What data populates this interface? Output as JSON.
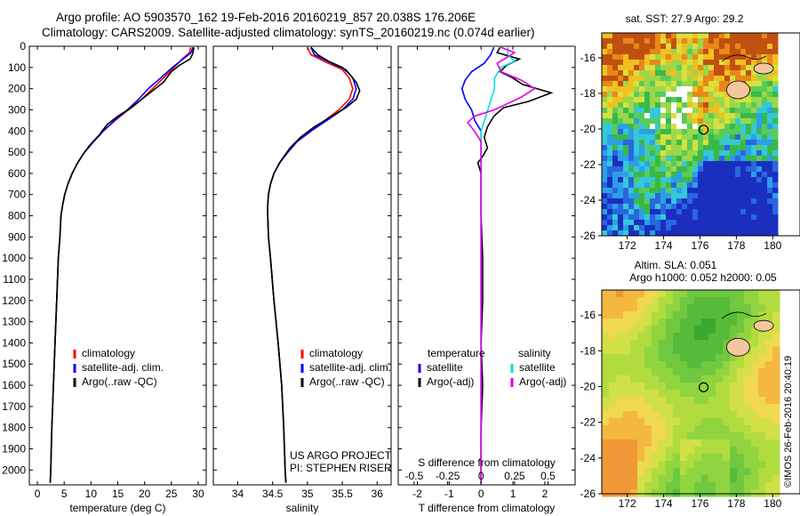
{
  "header": {
    "line1": "Argo profile: AO 5903570_162 19-Feb-2016 20160219_857 20.038S 176.206E",
    "line2": "Climatology: CARS2009. Satellite-adjusted climatology: synTS_20160219.nc (0.074d earlier)"
  },
  "colors": {
    "clim": "#ff0000",
    "sat": "#0000ff",
    "argo": "#000000",
    "sat_s": "#00e0e0",
    "argo_s": "#e000e0"
  },
  "chart_data": [
    {
      "type": "line",
      "panel": "temperature",
      "xlabel": "temperature (deg C)",
      "xlim": [
        -1.5,
        31.5
      ],
      "xticks": [
        0,
        5,
        10,
        15,
        20,
        25,
        30
      ],
      "ylim": [
        2070,
        0
      ],
      "yticks": [
        0,
        100,
        200,
        300,
        400,
        500,
        600,
        700,
        800,
        900,
        1000,
        1100,
        1200,
        1300,
        1400,
        1500,
        1600,
        1700,
        1800,
        1900,
        2000
      ],
      "legend": [
        "climatology",
        "satellite-adj. clim.",
        "Argo(..raw -QC)"
      ],
      "series": [
        {
          "name": "climatology",
          "color_key": "clim",
          "points": [
            [
              28.6,
              5
            ],
            [
              28.4,
              30
            ],
            [
              27,
              60
            ],
            [
              25.5,
              100
            ],
            [
              23.5,
              150
            ],
            [
              21.5,
              200
            ],
            [
              19.5,
              250
            ],
            [
              17,
              300
            ],
            [
              14.5,
              350
            ],
            [
              12.3,
              400
            ],
            [
              10.5,
              450
            ],
            [
              8.8,
              500
            ],
            [
              7.5,
              550
            ],
            [
              6.5,
              600
            ],
            [
              5.7,
              650
            ],
            [
              5.1,
              700
            ],
            [
              4.7,
              750
            ],
            [
              4.4,
              800
            ],
            [
              4.2,
              900
            ],
            [
              3.9,
              1000
            ],
            [
              3.6,
              1200
            ],
            [
              3.3,
              1400
            ],
            [
              3,
              1600
            ],
            [
              2.7,
              1800
            ],
            [
              2.5,
              2000
            ],
            [
              2.4,
              2060
            ]
          ]
        },
        {
          "name": "satellite-adj. clim.",
          "color_key": "sat",
          "points": [
            [
              29,
              5
            ],
            [
              28.7,
              30
            ],
            [
              27.2,
              60
            ],
            [
              25.2,
              100
            ],
            [
              23,
              150
            ],
            [
              20.7,
              200
            ],
            [
              18.9,
              250
            ],
            [
              16.8,
              300
            ],
            [
              14.4,
              350
            ],
            [
              12.3,
              400
            ],
            [
              10.5,
              450
            ],
            [
              8.8,
              500
            ],
            [
              7.5,
              550
            ],
            [
              6.5,
              600
            ],
            [
              5.7,
              650
            ],
            [
              5.1,
              700
            ],
            [
              4.7,
              750
            ],
            [
              4.4,
              800
            ],
            [
              4.2,
              900
            ],
            [
              3.9,
              1000
            ],
            [
              3.6,
              1200
            ],
            [
              3.3,
              1400
            ],
            [
              3,
              1600
            ],
            [
              2.7,
              1800
            ],
            [
              2.5,
              2000
            ],
            [
              2.4,
              2060
            ]
          ]
        },
        {
          "name": "Argo(..raw -QC)",
          "color_key": "argo",
          "points": [
            [
              29.2,
              5
            ],
            [
              29,
              35
            ],
            [
              28.5,
              60
            ],
            [
              26.5,
              90
            ],
            [
              25,
              120
            ],
            [
              23.5,
              170
            ],
            [
              21.5,
              210
            ],
            [
              19.5,
              250
            ],
            [
              17.5,
              290
            ],
            [
              15,
              330
            ],
            [
              13,
              370
            ],
            [
              11.5,
              420
            ],
            [
              10,
              460
            ],
            [
              8.8,
              500
            ],
            [
              7.5,
              550
            ],
            [
              6.5,
              600
            ],
            [
              5.7,
              650
            ],
            [
              5.1,
              700
            ],
            [
              4.7,
              750
            ],
            [
              4.4,
              800
            ],
            [
              4.2,
              900
            ],
            [
              3.9,
              1000
            ],
            [
              3.6,
              1200
            ],
            [
              3.3,
              1400
            ],
            [
              3,
              1600
            ],
            [
              2.7,
              1800
            ],
            [
              2.5,
              2000
            ],
            [
              2.4,
              2060
            ]
          ]
        }
      ]
    },
    {
      "type": "line",
      "panel": "salinity",
      "xlabel": "salinity",
      "xlim": [
        33.65,
        36.2
      ],
      "xticks": [
        34,
        34.5,
        35,
        35.5,
        36
      ],
      "ylim": [
        2070,
        0
      ],
      "legend": [
        "climatology",
        "satellite-adj. clim.",
        "Argo(..raw -QC)"
      ],
      "annotations": [
        "US ARGO PROJECT",
        "PI: STEPHEN RISER"
      ],
      "series": [
        {
          "name": "climatology",
          "color_key": "clim",
          "points": [
            [
              35,
              5
            ],
            [
              35.05,
              40
            ],
            [
              35.3,
              80
            ],
            [
              35.5,
              110
            ],
            [
              35.6,
              150
            ],
            [
              35.65,
              200
            ],
            [
              35.6,
              250
            ],
            [
              35.45,
              300
            ],
            [
              35.25,
              350
            ],
            [
              35.05,
              400
            ],
            [
              34.85,
              450
            ],
            [
              34.72,
              500
            ],
            [
              34.6,
              550
            ],
            [
              34.52,
              600
            ],
            [
              34.47,
              650
            ],
            [
              34.44,
              700
            ],
            [
              34.43,
              750
            ],
            [
              34.43,
              800
            ],
            [
              34.44,
              900
            ],
            [
              34.47,
              1000
            ],
            [
              34.52,
              1200
            ],
            [
              34.58,
              1400
            ],
            [
              34.63,
              1600
            ],
            [
              34.66,
              1800
            ],
            [
              34.68,
              2000
            ],
            [
              34.69,
              2060
            ]
          ]
        },
        {
          "name": "satellite-adj. clim.",
          "color_key": "sat",
          "points": [
            [
              35.05,
              5
            ],
            [
              35.1,
              40
            ],
            [
              35.35,
              80
            ],
            [
              35.55,
              110
            ],
            [
              35.65,
              150
            ],
            [
              35.7,
              200
            ],
            [
              35.65,
              250
            ],
            [
              35.5,
              300
            ],
            [
              35.28,
              350
            ],
            [
              35.05,
              400
            ],
            [
              34.85,
              450
            ],
            [
              34.72,
              500
            ],
            [
              34.6,
              550
            ],
            [
              34.52,
              600
            ],
            [
              34.47,
              650
            ],
            [
              34.44,
              700
            ],
            [
              34.43,
              750
            ],
            [
              34.43,
              800
            ],
            [
              34.44,
              900
            ],
            [
              34.47,
              1000
            ],
            [
              34.52,
              1200
            ],
            [
              34.58,
              1400
            ],
            [
              34.63,
              1600
            ],
            [
              34.66,
              1800
            ],
            [
              34.68,
              2000
            ],
            [
              34.69,
              2060
            ]
          ]
        },
        {
          "name": "Argo(..raw -QC)",
          "color_key": "argo",
          "points": [
            [
              35.05,
              5
            ],
            [
              35.15,
              40
            ],
            [
              35.3,
              70
            ],
            [
              35.5,
              100
            ],
            [
              35.6,
              130
            ],
            [
              35.7,
              170
            ],
            [
              35.75,
              210
            ],
            [
              35.7,
              250
            ],
            [
              35.55,
              290
            ],
            [
              35.3,
              340
            ],
            [
              35.1,
              380
            ],
            [
              34.9,
              430
            ],
            [
              34.75,
              480
            ],
            [
              34.62,
              540
            ],
            [
              34.52,
              600
            ],
            [
              34.47,
              650
            ],
            [
              34.44,
              700
            ],
            [
              34.43,
              750
            ],
            [
              34.43,
              800
            ],
            [
              34.44,
              900
            ],
            [
              34.47,
              1000
            ],
            [
              34.52,
              1200
            ],
            [
              34.58,
              1400
            ],
            [
              34.63,
              1600
            ],
            [
              34.66,
              1800
            ],
            [
              34.68,
              2000
            ],
            [
              34.69,
              2060
            ]
          ]
        }
      ]
    },
    {
      "type": "line",
      "panel": "difference",
      "xlabel": "T difference from climatology",
      "top_label": "S difference from climatology",
      "xlim": [
        -2.6,
        2.95
      ],
      "xticks": [
        -2,
        -1,
        0,
        1,
        2
      ],
      "s_xticks": [
        -0.5,
        -0.25,
        0,
        0.25,
        0.5
      ],
      "ylim": [
        2070,
        0
      ],
      "legend_temperature": [
        "temperature",
        "satellite",
        "Argo(-adj)"
      ],
      "legend_salinity": [
        "salinity",
        "satellite",
        "Argo(-adj)"
      ],
      "series": [
        {
          "name": "satellite",
          "quantity": "T",
          "color_key": "sat",
          "points": [
            [
              0.4,
              5
            ],
            [
              0.3,
              40
            ],
            [
              0.1,
              80
            ],
            [
              -0.3,
              120
            ],
            [
              -0.5,
              160
            ],
            [
              -0.6,
              200
            ],
            [
              -0.5,
              250
            ],
            [
              -0.3,
              300
            ],
            [
              -0.2,
              350
            ],
            [
              0,
              400
            ],
            [
              0,
              500
            ],
            [
              0,
              600
            ],
            [
              0,
              800
            ],
            [
              0,
              2060
            ]
          ]
        },
        {
          "name": "Argo(-adj)",
          "quantity": "T",
          "color_key": "argo",
          "points": [
            [
              0.6,
              5
            ],
            [
              0.5,
              30
            ],
            [
              1.2,
              60
            ],
            [
              0.8,
              90
            ],
            [
              0.6,
              120
            ],
            [
              1,
              150
            ],
            [
              1.3,
              180
            ],
            [
              2.2,
              220
            ],
            [
              1.5,
              260
            ],
            [
              0.7,
              290
            ],
            [
              0.4,
              330
            ],
            [
              0.2,
              380
            ],
            [
              0.1,
              430
            ],
            [
              0.2,
              480
            ],
            [
              0.05,
              520
            ],
            [
              -0.1,
              550
            ],
            [
              0,
              600
            ],
            [
              0,
              700
            ],
            [
              0,
              800
            ],
            [
              0.05,
              1000
            ],
            [
              0.05,
              1200
            ],
            [
              0,
              1400
            ],
            [
              0.05,
              1600
            ],
            [
              0,
              1800
            ],
            [
              0,
              2060
            ]
          ]
        },
        {
          "name": "satellite",
          "quantity": "S",
          "color_key": "sat_s",
          "points": [
            [
              0.2,
              5
            ],
            [
              0.2,
              40
            ],
            [
              0.25,
              70
            ],
            [
              0.15,
              100
            ],
            [
              0.1,
              150
            ],
            [
              0.1,
              200
            ],
            [
              0.05,
              300
            ],
            [
              0,
              400
            ],
            [
              0,
              600
            ],
            [
              0,
              800
            ],
            [
              0,
              1200
            ],
            [
              0,
              2060
            ]
          ]
        },
        {
          "name": "Argo(-adj)",
          "quantity": "S",
          "color_key": "argo_s",
          "points": [
            [
              0.15,
              5
            ],
            [
              0.25,
              30
            ],
            [
              0.2,
              50
            ],
            [
              0.12,
              80
            ],
            [
              0.15,
              120
            ],
            [
              0.3,
              160
            ],
            [
              0.4,
              200
            ],
            [
              0.3,
              240
            ],
            [
              0.2,
              270
            ],
            [
              0.1,
              300
            ],
            [
              -0.05,
              330
            ],
            [
              -0.1,
              360
            ],
            [
              -0.05,
              400
            ],
            [
              0,
              450
            ],
            [
              0,
              600
            ],
            [
              0,
              800
            ],
            [
              0,
              2060
            ]
          ]
        }
      ]
    },
    {
      "type": "heatmap",
      "panel": "sst_map",
      "title": "sat. SST: 27.9  Argo: 29.2",
      "xlim": [
        170.6,
        181.5
      ],
      "xticks": [
        172,
        174,
        176,
        178,
        180
      ],
      "ylim": [
        -26,
        -14.6
      ],
      "yticks": [
        -16,
        -18,
        -20,
        -22,
        -24,
        -26
      ],
      "marker": [
        176.2,
        -20.04
      ]
    },
    {
      "type": "heatmap",
      "panel": "sla_map",
      "title_line1": "Altim. SLA: 0.051",
      "title_line2": "Argo h1000: 0.052  h2000: 0.05",
      "xlim": [
        170.6,
        181.5
      ],
      "xticks": [
        172,
        174,
        176,
        178,
        180
      ],
      "ylim": [
        -26,
        -14.6
      ],
      "yticks": [
        -16,
        -18,
        -20,
        -22,
        -24,
        -26
      ],
      "marker": [
        176.2,
        -20.04
      ]
    }
  ],
  "footer": "©IMOS 26-Feb-2016 20:40:19"
}
